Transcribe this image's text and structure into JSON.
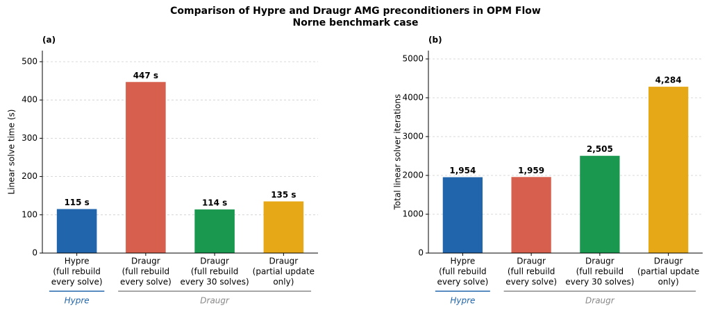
{
  "title": [
    "Comparison of Hypre and Draugr AMG preconditioners in OPM Flow",
    "Norne benchmark case"
  ],
  "chart_data": [
    {
      "type": "bar",
      "panel_label": "(a)",
      "ylabel": "Linear solve time (s)",
      "categories": [
        [
          "Hypre",
          "(full rebuild",
          "every solve)"
        ],
        [
          "Draugr",
          "(full rebuild",
          "every solve)"
        ],
        [
          "Draugr",
          "(full rebuild",
          "every 30 solves)"
        ],
        [
          "Draugr",
          "(partial update",
          "only)"
        ]
      ],
      "values": [
        115,
        447,
        114,
        135
      ],
      "value_labels": [
        "115 s",
        "447 s",
        "114 s",
        "135 s"
      ],
      "colors": [
        "#2166ac",
        "#d6604d",
        "#1a9850",
        "#e6a817"
      ],
      "ylim": [
        0,
        529
      ],
      "yticks": [
        0,
        100,
        200,
        300,
        400,
        500
      ],
      "grid": true,
      "groups": [
        {
          "name": "Hypre",
          "color": "#2166ac",
          "span": [
            0,
            0
          ]
        },
        {
          "name": "Draugr",
          "color": "#888888",
          "span": [
            1,
            3
          ]
        }
      ]
    },
    {
      "type": "bar",
      "panel_label": "(b)",
      "ylabel": "Total linear solver iterations",
      "categories": [
        [
          "Hypre",
          "(full rebuild",
          "every solve)"
        ],
        [
          "Draugr",
          "(full rebuild",
          "every solve)"
        ],
        [
          "Draugr",
          "(full rebuild",
          "every 30 solves)"
        ],
        [
          "Draugr",
          "(partial update",
          "only)"
        ]
      ],
      "values": [
        1954,
        1959,
        2505,
        4284
      ],
      "value_labels": [
        "1,954",
        "1,959",
        "2,505",
        "4,284"
      ],
      "colors": [
        "#2166ac",
        "#d6604d",
        "#1a9850",
        "#e6a817"
      ],
      "ylim": [
        0,
        5214
      ],
      "yticks": [
        0,
        1000,
        2000,
        3000,
        4000,
        5000
      ],
      "grid": true,
      "groups": [
        {
          "name": "Hypre",
          "color": "#2166ac",
          "span": [
            0,
            0
          ]
        },
        {
          "name": "Draugr",
          "color": "#888888",
          "span": [
            1,
            3
          ]
        }
      ]
    }
  ]
}
